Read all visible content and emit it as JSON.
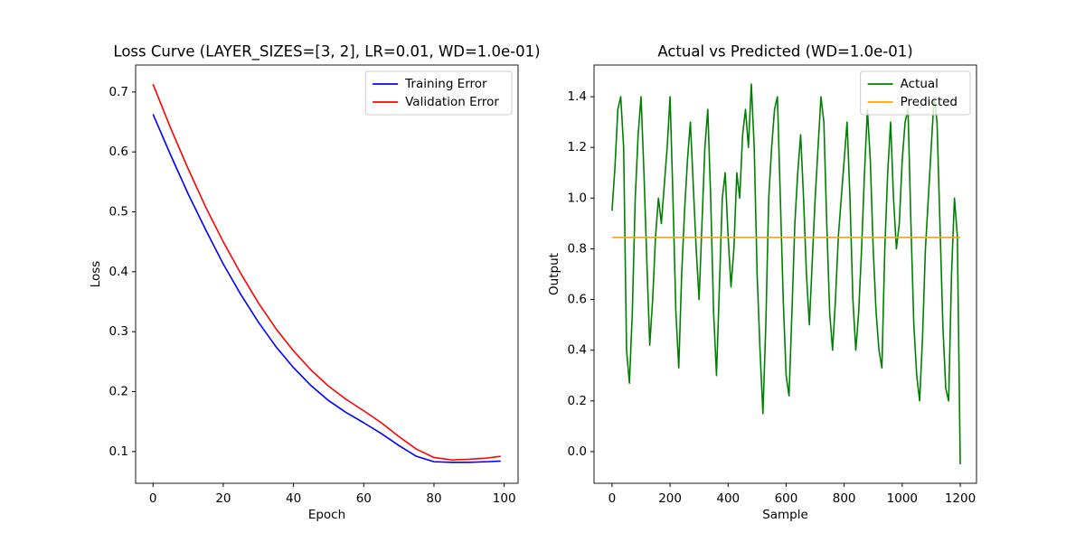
{
  "chart_data": [
    {
      "type": "line",
      "title": "Loss Curve (LAYER_SIZES=[3, 2], LR=0.01, WD=1.0e-01)",
      "x_label": "Epoch",
      "y_label": "Loss",
      "x": [
        0,
        5,
        10,
        15,
        20,
        25,
        30,
        35,
        40,
        45,
        50,
        55,
        60,
        65,
        70,
        75,
        80,
        85,
        90,
        95,
        99
      ],
      "series": [
        {
          "name": "Training Error",
          "color": "#0000ff",
          "values": [
            0.663,
            0.595,
            0.53,
            0.47,
            0.413,
            0.362,
            0.316,
            0.275,
            0.24,
            0.21,
            0.185,
            0.165,
            0.148,
            0.13,
            0.11,
            0.092,
            0.083,
            0.082,
            0.082,
            0.083,
            0.084
          ]
        },
        {
          "name": "Validation Error",
          "color": "#ff0000",
          "values": [
            0.713,
            0.64,
            0.572,
            0.508,
            0.45,
            0.397,
            0.348,
            0.305,
            0.268,
            0.236,
            0.209,
            0.187,
            0.168,
            0.148,
            0.125,
            0.104,
            0.09,
            0.086,
            0.087,
            0.089,
            0.092
          ]
        }
      ],
      "xlim": [
        -4.95,
        103.95
      ],
      "ylim": [
        0.047,
        0.745
      ],
      "xticks": [
        0,
        20,
        40,
        60,
        80,
        100
      ],
      "yticks": [
        0.1,
        0.2,
        0.3,
        0.4,
        0.5,
        0.6,
        0.7
      ],
      "grid": false,
      "legend": "upper right"
    },
    {
      "type": "line",
      "title": "Actual vs Predicted (WD=1.0e-01)",
      "x_label": "Sample",
      "y_label": "Output",
      "series": [
        {
          "name": "Actual",
          "color": "#008000",
          "x": [
            0,
            10,
            20,
            30,
            40,
            50,
            60,
            70,
            80,
            90,
            100,
            110,
            120,
            130,
            140,
            150,
            160,
            170,
            180,
            190,
            200,
            210,
            220,
            230,
            240,
            250,
            260,
            270,
            280,
            290,
            300,
            310,
            320,
            330,
            340,
            350,
            360,
            370,
            380,
            390,
            400,
            410,
            420,
            430,
            440,
            450,
            460,
            470,
            480,
            490,
            500,
            510,
            520,
            530,
            540,
            550,
            560,
            570,
            580,
            590,
            600,
            610,
            620,
            630,
            640,
            650,
            660,
            670,
            680,
            690,
            700,
            710,
            720,
            730,
            740,
            750,
            760,
            770,
            780,
            790,
            800,
            810,
            820,
            830,
            840,
            850,
            860,
            870,
            880,
            890,
            900,
            910,
            920,
            930,
            940,
            950,
            960,
            970,
            980,
            990,
            1000,
            1010,
            1020,
            1030,
            1040,
            1050,
            1060,
            1070,
            1080,
            1090,
            1100,
            1110,
            1120,
            1130,
            1140,
            1150,
            1160,
            1170,
            1180,
            1190,
            1200
          ],
          "values": [
            0.95,
            1.12,
            1.35,
            1.4,
            1.2,
            0.4,
            0.27,
            0.55,
            1.0,
            1.25,
            1.4,
            1.1,
            0.75,
            0.42,
            0.6,
            0.85,
            1.0,
            0.9,
            1.05,
            1.2,
            1.4,
            1.0,
            0.55,
            0.33,
            0.7,
            0.95,
            1.15,
            1.3,
            1.05,
            0.8,
            0.6,
            0.9,
            1.2,
            1.35,
            1.0,
            0.55,
            0.3,
            0.65,
            1.0,
            1.1,
            0.85,
            0.65,
            0.8,
            1.1,
            1.0,
            1.25,
            1.35,
            1.2,
            1.45,
            1.2,
            0.7,
            0.4,
            0.15,
            0.5,
            1.0,
            1.2,
            1.35,
            1.4,
            1.0,
            0.6,
            0.3,
            0.22,
            0.55,
            0.9,
            1.1,
            1.25,
            1.0,
            0.7,
            0.5,
            0.75,
            1.0,
            1.2,
            1.4,
            1.3,
            0.9,
            0.55,
            0.4,
            0.6,
            0.85,
            1.0,
            1.15,
            1.3,
            1.0,
            0.6,
            0.4,
            0.55,
            0.8,
            1.1,
            1.35,
            1.15,
            0.8,
            0.55,
            0.4,
            0.33,
            0.8,
            1.1,
            1.3,
            1.0,
            0.8,
            0.9,
            1.15,
            1.3,
            1.35,
            0.9,
            0.5,
            0.3,
            0.2,
            0.45,
            0.8,
            1.0,
            1.2,
            1.4,
            1.3,
            0.9,
            0.5,
            0.25,
            0.2,
            0.7,
            1.0,
            0.85,
            -0.05
          ]
        },
        {
          "name": "Predicted",
          "color": "#ffa500",
          "x": [
            0,
            1200
          ],
          "values": [
            0.845,
            0.845
          ]
        }
      ],
      "xlim": [
        -62,
        1256
      ],
      "ylim": [
        -0.125,
        1.525
      ],
      "xticks": [
        0,
        200,
        400,
        600,
        800,
        1000,
        1200
      ],
      "yticks": [
        {
          "value": 0,
          "label": "0.0"
        },
        0.2,
        0.4,
        0.6,
        0.8,
        {
          "value": 1,
          "label": "1.0"
        },
        1.2,
        1.4
      ],
      "grid": false,
      "legend": "upper right"
    }
  ]
}
